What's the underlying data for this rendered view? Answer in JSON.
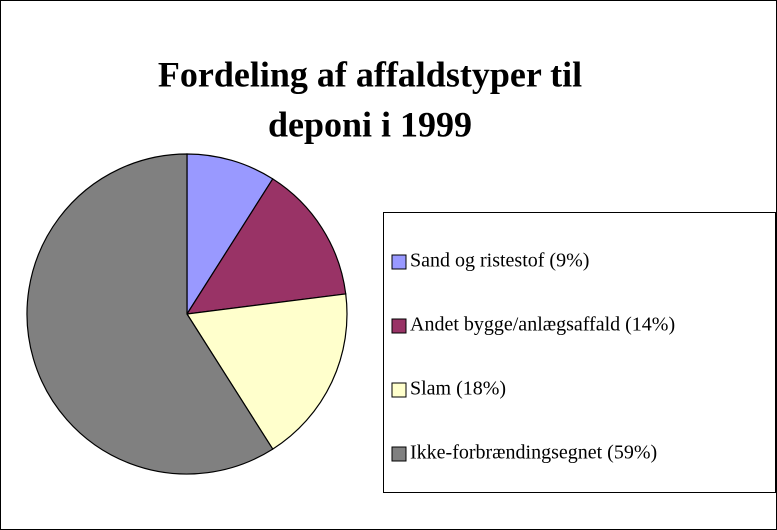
{
  "chart_data": {
    "type": "pie",
    "title": [
      "Fordeling af affaldstyper til",
      "deponi i 1999"
    ],
    "categories": [
      "Sand og ristestof (9%)",
      "Andet bygge/anlægsaffald  (14%)",
      "Slam  (18%)",
      "Ikke-forbrændingsegnet  (59%)"
    ],
    "values": [
      9,
      14,
      18,
      59
    ],
    "colors": [
      "#9999ff",
      "#993366",
      "#ffffcc",
      "#808080"
    ],
    "legend": "right"
  }
}
